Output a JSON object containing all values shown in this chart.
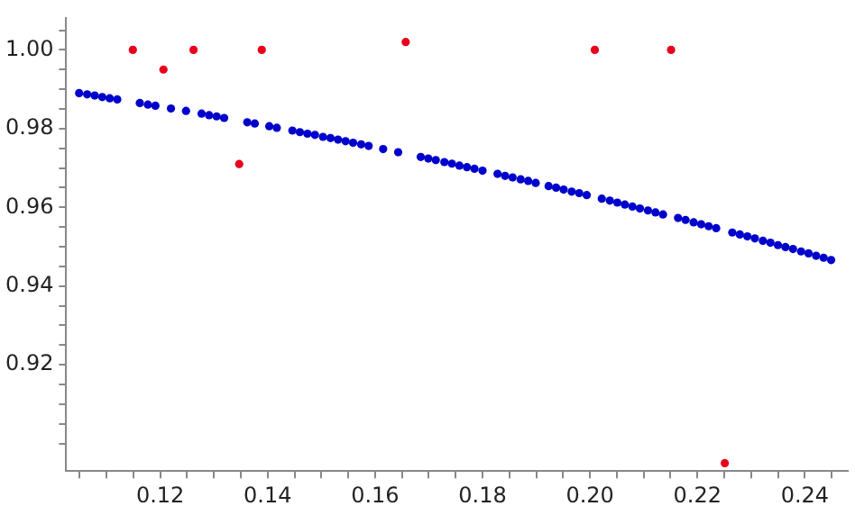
{
  "chart_data": {
    "type": "scatter",
    "marker": "circle",
    "grid": false,
    "legend": false,
    "xlim": [
      0.1025,
      0.248
    ],
    "xticks": [
      {
        "value": 0.105,
        "label": null
      },
      {
        "value": 0.11,
        "label": null
      },
      {
        "value": 0.115,
        "label": null
      },
      {
        "value": 0.12,
        "label": "0.12"
      },
      {
        "value": 0.125,
        "label": null
      },
      {
        "value": 0.13,
        "label": null
      },
      {
        "value": 0.135,
        "label": null
      },
      {
        "value": 0.14,
        "label": "0.14"
      },
      {
        "value": 0.145,
        "label": null
      },
      {
        "value": 0.15,
        "label": null
      },
      {
        "value": 0.155,
        "label": null
      },
      {
        "value": 0.16,
        "label": "0.16"
      },
      {
        "value": 0.165,
        "label": null
      },
      {
        "value": 0.17,
        "label": null
      },
      {
        "value": 0.175,
        "label": null
      },
      {
        "value": 0.18,
        "label": "0.18"
      },
      {
        "value": 0.185,
        "label": null
      },
      {
        "value": 0.19,
        "label": null
      },
      {
        "value": 0.195,
        "label": null
      },
      {
        "value": 0.2,
        "label": "0.20"
      },
      {
        "value": 0.205,
        "label": null
      },
      {
        "value": 0.21,
        "label": null
      },
      {
        "value": 0.215,
        "label": null
      },
      {
        "value": 0.22,
        "label": "0.22"
      },
      {
        "value": 0.225,
        "label": null
      },
      {
        "value": 0.23,
        "label": null
      },
      {
        "value": 0.235,
        "label": null
      },
      {
        "value": 0.24,
        "label": "0.24"
      },
      {
        "value": 0.245,
        "label": null
      }
    ],
    "ylim": [
      0.893,
      1.008
    ],
    "yticks": [
      {
        "value": 0.9,
        "label": null
      },
      {
        "value": 0.905,
        "label": null
      },
      {
        "value": 0.91,
        "label": null
      },
      {
        "value": 0.915,
        "label": null
      },
      {
        "value": 0.92,
        "label": "0.92"
      },
      {
        "value": 0.925,
        "label": null
      },
      {
        "value": 0.93,
        "label": null
      },
      {
        "value": 0.935,
        "label": null
      },
      {
        "value": 0.94,
        "label": "0.94"
      },
      {
        "value": 0.945,
        "label": null
      },
      {
        "value": 0.95,
        "label": null
      },
      {
        "value": 0.955,
        "label": null
      },
      {
        "value": 0.96,
        "label": "0.96"
      },
      {
        "value": 0.965,
        "label": null
      },
      {
        "value": 0.97,
        "label": null
      },
      {
        "value": 0.975,
        "label": null
      },
      {
        "value": 0.98,
        "label": "0.98"
      },
      {
        "value": 0.985,
        "label": null
      },
      {
        "value": 0.99,
        "label": null
      },
      {
        "value": 0.995,
        "label": null
      },
      {
        "value": 1.0,
        "label": "1.00"
      },
      {
        "value": 1.005,
        "label": null
      }
    ],
    "series": [
      {
        "color": "#0000cc",
        "x": [
          0.1049,
          0.1064,
          0.1078,
          0.1092,
          0.1106,
          0.112,
          0.1162,
          0.1177,
          0.1191,
          0.122,
          0.1248,
          0.1277,
          0.1291,
          0.1305,
          0.1319,
          0.1362,
          0.1376,
          0.1403,
          0.1417,
          0.1446,
          0.146,
          0.1474,
          0.1488,
          0.1503,
          0.1517,
          0.1531,
          0.1545,
          0.1559,
          0.1574,
          0.1588,
          0.1615,
          0.1643,
          0.1685,
          0.1699,
          0.1713,
          0.1729,
          0.1743,
          0.1757,
          0.1771,
          0.1785,
          0.18,
          0.1828,
          0.1842,
          0.1856,
          0.1871,
          0.1885,
          0.1899,
          0.1923,
          0.1937,
          0.1951,
          0.1966,
          0.198,
          0.1994,
          0.2022,
          0.2037,
          0.2051,
          0.2065,
          0.2079,
          0.2093,
          0.2108,
          0.2122,
          0.2136,
          0.2164,
          0.2178,
          0.2193,
          0.2207,
          0.2221,
          0.2235,
          0.2265,
          0.2279,
          0.2293,
          0.2307,
          0.2322,
          0.2336,
          0.235,
          0.2364,
          0.2378,
          0.2393,
          0.2407,
          0.2421,
          0.2435,
          0.2449
        ],
        "values": [
          0.989,
          0.9887,
          0.9884,
          0.988,
          0.9877,
          0.9874,
          0.9865,
          0.9861,
          0.9858,
          0.9851,
          0.9845,
          0.9838,
          0.9834,
          0.9831,
          0.9827,
          0.9816,
          0.9813,
          0.9806,
          0.9802,
          0.9795,
          0.9791,
          0.9787,
          0.9784,
          0.9779,
          0.9776,
          0.9772,
          0.9768,
          0.9764,
          0.976,
          0.9756,
          0.9748,
          0.974,
          0.9728,
          0.9724,
          0.972,
          0.9715,
          0.9711,
          0.9706,
          0.9702,
          0.9698,
          0.9693,
          0.9685,
          0.968,
          0.9676,
          0.9671,
          0.9667,
          0.9662,
          0.9654,
          0.965,
          0.9645,
          0.964,
          0.9636,
          0.9631,
          0.9622,
          0.9617,
          0.9612,
          0.9607,
          0.9602,
          0.9597,
          0.9592,
          0.9587,
          0.9582,
          0.9573,
          0.9568,
          0.9562,
          0.9557,
          0.9552,
          0.9547,
          0.9536,
          0.9531,
          0.9526,
          0.9521,
          0.9515,
          0.951,
          0.9504,
          0.9499,
          0.9494,
          0.9488,
          0.9483,
          0.9477,
          0.9472,
          0.9466
        ]
      },
      {
        "color": "#e8001c",
        "x": [
          0.1149,
          0.1206,
          0.1262,
          0.1347,
          0.1389,
          0.1657,
          0.2009,
          0.2151,
          0.2251
        ],
        "values": [
          1.0,
          0.995,
          1.0,
          0.971,
          1.0,
          1.002,
          1.0,
          1.0,
          0.895
        ]
      }
    ]
  }
}
